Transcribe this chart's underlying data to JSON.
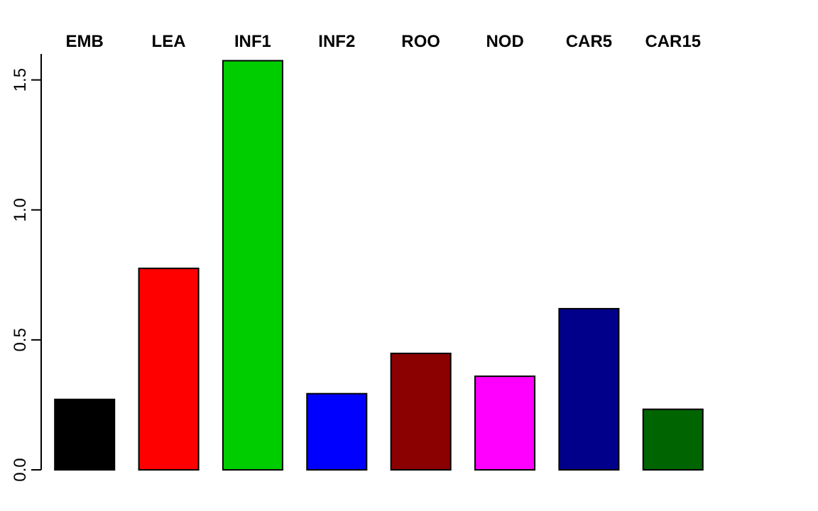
{
  "chart_data": {
    "type": "bar",
    "categories": [
      "EMB",
      "LEA",
      "INF1",
      "INF2",
      "ROO",
      "NOD",
      "CAR5",
      "CAR15"
    ],
    "values": [
      0.271,
      0.775,
      1.574,
      0.293,
      0.448,
      0.36,
      0.62,
      0.233
    ],
    "colors": [
      "#000000",
      "#ff0000",
      "#00cd00",
      "#0000ff",
      "#8b0000",
      "#ff00ff",
      "#00008b",
      "#006400"
    ],
    "ylim": [
      0,
      1.6
    ],
    "yticks": [
      {
        "value": 0,
        "label": "0.0"
      },
      {
        "value": 0.5,
        "label": "0.5"
      },
      {
        "value": 1,
        "label": "1.0"
      },
      {
        "value": 1.5,
        "label": "1.5"
      }
    ],
    "grid": false
  }
}
